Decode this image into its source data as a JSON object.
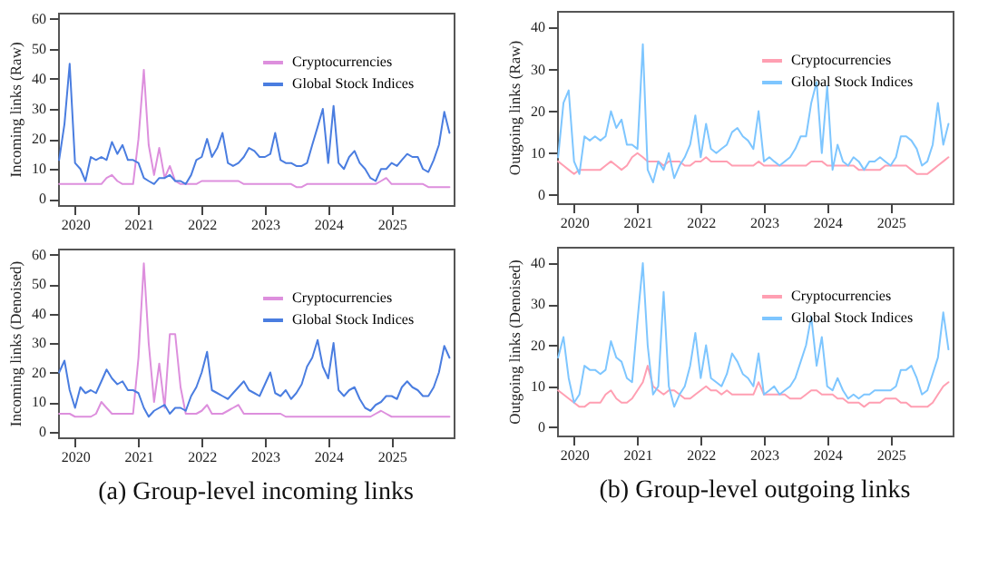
{
  "chart_data": [
    {
      "type": "line",
      "ylabel": "Incoming links (Raw)",
      "legend": "top right",
      "xlim": [
        "2019-09-25",
        "2025-12-25"
      ],
      "xticks": [
        {
          "value": "2020",
          "label": "2020"
        },
        {
          "value": "2021",
          "label": "2021"
        },
        {
          "value": "2022",
          "label": "2022"
        },
        {
          "value": "2023",
          "label": "2023"
        },
        {
          "value": "2024",
          "label": "2024"
        },
        {
          "value": "2025",
          "label": "2025"
        }
      ],
      "ylim": [
        -2,
        62
      ],
      "yticks": [
        0,
        10,
        20,
        30,
        40,
        50,
        60
      ],
      "x": [
        "2019-10",
        "2019-11",
        "2019-12",
        "2020-01",
        "2020-02",
        "2020-03",
        "2020-04",
        "2020-05",
        "2020-06",
        "2020-07",
        "2020-08",
        "2020-09",
        "2020-10",
        "2020-11",
        "2020-12",
        "2021-01",
        "2021-02",
        "2021-03",
        "2021-04",
        "2021-05",
        "2021-06",
        "2021-07",
        "2021-08",
        "2021-09",
        "2021-10",
        "2021-11",
        "2021-12",
        "2022-01",
        "2022-02",
        "2022-03",
        "2022-04",
        "2022-05",
        "2022-06",
        "2022-07",
        "2022-08",
        "2022-09",
        "2022-10",
        "2022-11",
        "2022-12",
        "2023-01",
        "2023-02",
        "2023-03",
        "2023-04",
        "2023-05",
        "2023-06",
        "2023-07",
        "2023-08",
        "2023-09",
        "2023-10",
        "2023-11",
        "2023-12",
        "2024-01",
        "2024-02",
        "2024-03",
        "2024-04",
        "2024-05",
        "2024-06",
        "2024-07",
        "2024-08",
        "2024-09",
        "2024-10",
        "2024-11",
        "2024-12",
        "2025-01",
        "2025-02",
        "2025-03",
        "2025-04",
        "2025-05",
        "2025-06",
        "2025-07",
        "2025-08",
        "2025-09",
        "2025-10",
        "2025-11",
        "2025-12"
      ],
      "series": [
        {
          "name": "Cryptocurrencies",
          "color": "#dd8fdd",
          "values": [
            5,
            5,
            5,
            5,
            5,
            5,
            5,
            5,
            5,
            7,
            8,
            6,
            5,
            5,
            5,
            20,
            43,
            18,
            8,
            17,
            7,
            11,
            6,
            5,
            5,
            5,
            5,
            6,
            6,
            6,
            6,
            6,
            6,
            6,
            6,
            5,
            5,
            5,
            5,
            5,
            5,
            5,
            5,
            5,
            5,
            4,
            4,
            5,
            5,
            5,
            5,
            5,
            5,
            5,
            5,
            5,
            5,
            5,
            5,
            5,
            5,
            6,
            7,
            5,
            5,
            5,
            5,
            5,
            5,
            5,
            4,
            4,
            4,
            4,
            4
          ]
        },
        {
          "name": "Global Stock Indices",
          "color": "#4a7de0",
          "values": [
            13,
            25,
            45,
            12,
            10,
            6,
            14,
            13,
            14,
            13,
            19,
            15,
            18,
            13,
            13,
            12,
            7,
            6,
            5,
            7,
            7,
            8,
            6,
            6,
            5,
            8,
            13,
            14,
            20,
            14,
            17,
            22,
            12,
            11,
            12,
            14,
            17,
            16,
            14,
            14,
            15,
            22,
            13,
            12,
            12,
            11,
            11,
            12,
            18,
            24,
            30,
            12,
            31,
            12,
            10,
            14,
            16,
            12,
            10,
            7,
            6,
            10,
            10,
            12,
            11,
            13,
            15,
            14,
            14,
            10,
            9,
            13,
            18,
            29,
            22
          ]
        }
      ]
    },
    {
      "type": "line",
      "ylabel": "Outgoing links (Raw)",
      "legend": "top right",
      "xlim": [
        "2019-09-25",
        "2025-12-25"
      ],
      "xticks": [
        {
          "value": "2020",
          "label": "2020"
        },
        {
          "value": "2021",
          "label": "2021"
        },
        {
          "value": "2022",
          "label": "2022"
        },
        {
          "value": "2023",
          "label": "2023"
        },
        {
          "value": "2024",
          "label": "2024"
        },
        {
          "value": "2025",
          "label": "2025"
        }
      ],
      "ylim": [
        -2,
        44
      ],
      "yticks": [
        0,
        10,
        20,
        30,
        40
      ],
      "x": [
        "2019-10",
        "2019-11",
        "2019-12",
        "2020-01",
        "2020-02",
        "2020-03",
        "2020-04",
        "2020-05",
        "2020-06",
        "2020-07",
        "2020-08",
        "2020-09",
        "2020-10",
        "2020-11",
        "2020-12",
        "2021-01",
        "2021-02",
        "2021-03",
        "2021-04",
        "2021-05",
        "2021-06",
        "2021-07",
        "2021-08",
        "2021-09",
        "2021-10",
        "2021-11",
        "2021-12",
        "2022-01",
        "2022-02",
        "2022-03",
        "2022-04",
        "2022-05",
        "2022-06",
        "2022-07",
        "2022-08",
        "2022-09",
        "2022-10",
        "2022-11",
        "2022-12",
        "2023-01",
        "2023-02",
        "2023-03",
        "2023-04",
        "2023-05",
        "2023-06",
        "2023-07",
        "2023-08",
        "2023-09",
        "2023-10",
        "2023-11",
        "2023-12",
        "2024-01",
        "2024-02",
        "2024-03",
        "2024-04",
        "2024-05",
        "2024-06",
        "2024-07",
        "2024-08",
        "2024-09",
        "2024-10",
        "2024-11",
        "2024-12",
        "2025-01",
        "2025-02",
        "2025-03",
        "2025-04",
        "2025-05",
        "2025-06",
        "2025-07",
        "2025-08",
        "2025-09",
        "2025-10",
        "2025-11",
        "2025-12"
      ],
      "series": [
        {
          "name": "Cryptocurrencies",
          "color": "#ff9fb2",
          "values": [
            8,
            7,
            6,
            5,
            6,
            6,
            6,
            6,
            6,
            7,
            8,
            7,
            6,
            7,
            9,
            10,
            9,
            8,
            8,
            8,
            7,
            8,
            8,
            8,
            7,
            7,
            8,
            8,
            9,
            8,
            8,
            8,
            8,
            7,
            7,
            7,
            7,
            7,
            8,
            7,
            7,
            7,
            7,
            7,
            7,
            7,
            7,
            7,
            8,
            8,
            8,
            7,
            7,
            7,
            7,
            7,
            7,
            6,
            6,
            6,
            6,
            6,
            7,
            7,
            7,
            7,
            7,
            6,
            5,
            5,
            5,
            6,
            7,
            8,
            9
          ]
        },
        {
          "name": "Global Stock Indices",
          "color": "#7ec6ff",
          "values": [
            9,
            22,
            25,
            8,
            5,
            14,
            13,
            14,
            13,
            14,
            20,
            16,
            18,
            12,
            12,
            11,
            36,
            6,
            3,
            8,
            6,
            10,
            4,
            7,
            9,
            12,
            19,
            9,
            17,
            11,
            10,
            11,
            12,
            15,
            16,
            14,
            13,
            11,
            20,
            8,
            9,
            8,
            7,
            8,
            9,
            11,
            14,
            14,
            22,
            27,
            10,
            26,
            6,
            12,
            8,
            7,
            9,
            8,
            6,
            8,
            8,
            9,
            8,
            7,
            9,
            14,
            14,
            13,
            11,
            7,
            8,
            12,
            22,
            12,
            17
          ]
        }
      ]
    },
    {
      "type": "line",
      "ylabel": "Incoming links (Denoised)",
      "legend": "top right",
      "annotations": [
        "(a) Group-level incoming links"
      ],
      "xlim": [
        "2019-09-25",
        "2025-12-25"
      ],
      "xticks": [
        {
          "value": "2020",
          "label": "2020"
        },
        {
          "value": "2021",
          "label": "2021"
        },
        {
          "value": "2022",
          "label": "2022"
        },
        {
          "value": "2023",
          "label": "2023"
        },
        {
          "value": "2024",
          "label": "2024"
        },
        {
          "value": "2025",
          "label": "2025"
        }
      ],
      "ylim": [
        -2,
        62
      ],
      "yticks": [
        0,
        10,
        20,
        30,
        40,
        50,
        60
      ],
      "x": [
        "2019-10",
        "2019-11",
        "2019-12",
        "2020-01",
        "2020-02",
        "2020-03",
        "2020-04",
        "2020-05",
        "2020-06",
        "2020-07",
        "2020-08",
        "2020-09",
        "2020-10",
        "2020-11",
        "2020-12",
        "2021-01",
        "2021-02",
        "2021-03",
        "2021-04",
        "2021-05",
        "2021-06",
        "2021-07",
        "2021-08",
        "2021-09",
        "2021-10",
        "2021-11",
        "2021-12",
        "2022-01",
        "2022-02",
        "2022-03",
        "2022-04",
        "2022-05",
        "2022-06",
        "2022-07",
        "2022-08",
        "2022-09",
        "2022-10",
        "2022-11",
        "2022-12",
        "2023-01",
        "2023-02",
        "2023-03",
        "2023-04",
        "2023-05",
        "2023-06",
        "2023-07",
        "2023-08",
        "2023-09",
        "2023-10",
        "2023-11",
        "2023-12",
        "2024-01",
        "2024-02",
        "2024-03",
        "2024-04",
        "2024-05",
        "2024-06",
        "2024-07",
        "2024-08",
        "2024-09",
        "2024-10",
        "2024-11",
        "2024-12",
        "2025-01",
        "2025-02",
        "2025-03",
        "2025-04",
        "2025-05",
        "2025-06",
        "2025-07",
        "2025-08",
        "2025-09",
        "2025-10",
        "2025-11",
        "2025-12"
      ],
      "series": [
        {
          "name": "Cryptocurrencies",
          "color": "#dd8fdd",
          "values": [
            6,
            6,
            6,
            5,
            5,
            5,
            5,
            6,
            10,
            8,
            6,
            6,
            6,
            6,
            6,
            25,
            57,
            30,
            10,
            23,
            8,
            33,
            33,
            15,
            6,
            6,
            6,
            7,
            9,
            6,
            6,
            6,
            7,
            8,
            9,
            6,
            6,
            6,
            6,
            6,
            6,
            6,
            6,
            5,
            5,
            5,
            5,
            5,
            5,
            5,
            5,
            5,
            5,
            5,
            5,
            5,
            5,
            5,
            5,
            5,
            6,
            7,
            6,
            5,
            5,
            5,
            5,
            5,
            5,
            5,
            5,
            5,
            5,
            5,
            5
          ]
        },
        {
          "name": "Global Stock Indices",
          "color": "#4a7de0",
          "values": [
            20,
            24,
            14,
            8,
            15,
            13,
            14,
            13,
            17,
            21,
            18,
            16,
            17,
            14,
            14,
            13,
            8,
            5,
            7,
            8,
            9,
            6,
            8,
            8,
            7,
            12,
            15,
            20,
            27,
            14,
            13,
            12,
            11,
            13,
            15,
            17,
            14,
            13,
            12,
            16,
            20,
            13,
            12,
            14,
            11,
            13,
            16,
            22,
            25,
            31,
            22,
            18,
            30,
            14,
            12,
            14,
            15,
            11,
            8,
            7,
            9,
            10,
            12,
            12,
            11,
            15,
            17,
            15,
            14,
            12,
            12,
            15,
            20,
            29,
            25
          ]
        }
      ]
    },
    {
      "type": "line",
      "ylabel": "Outgoing links (Denoised)",
      "legend": "top right",
      "annotations": [
        "(b) Group-level outgoing links"
      ],
      "xlim": [
        "2019-09-25",
        "2025-12-25"
      ],
      "xticks": [
        {
          "value": "2020",
          "label": "2020"
        },
        {
          "value": "2021",
          "label": "2021"
        },
        {
          "value": "2022",
          "label": "2022"
        },
        {
          "value": "2023",
          "label": "2023"
        },
        {
          "value": "2024",
          "label": "2024"
        },
        {
          "value": "2025",
          "label": "2025"
        }
      ],
      "ylim": [
        -2,
        44
      ],
      "yticks": [
        0,
        10,
        20,
        30,
        40
      ],
      "x": [
        "2019-10",
        "2019-11",
        "2019-12",
        "2020-01",
        "2020-02",
        "2020-03",
        "2020-04",
        "2020-05",
        "2020-06",
        "2020-07",
        "2020-08",
        "2020-09",
        "2020-10",
        "2020-11",
        "2020-12",
        "2021-01",
        "2021-02",
        "2021-03",
        "2021-04",
        "2021-05",
        "2021-06",
        "2021-07",
        "2021-08",
        "2021-09",
        "2021-10",
        "2021-11",
        "2021-12",
        "2022-01",
        "2022-02",
        "2022-03",
        "2022-04",
        "2022-05",
        "2022-06",
        "2022-07",
        "2022-08",
        "2022-09",
        "2022-10",
        "2022-11",
        "2022-12",
        "2023-01",
        "2023-02",
        "2023-03",
        "2023-04",
        "2023-05",
        "2023-06",
        "2023-07",
        "2023-08",
        "2023-09",
        "2023-10",
        "2023-11",
        "2023-12",
        "2024-01",
        "2024-02",
        "2024-03",
        "2024-04",
        "2024-05",
        "2024-06",
        "2024-07",
        "2024-08",
        "2024-09",
        "2024-10",
        "2024-11",
        "2024-12",
        "2025-01",
        "2025-02",
        "2025-03",
        "2025-04",
        "2025-05",
        "2025-06",
        "2025-07",
        "2025-08",
        "2025-09",
        "2025-10",
        "2025-11",
        "2025-12"
      ],
      "series": [
        {
          "name": "Cryptocurrencies",
          "color": "#ff9fb2",
          "values": [
            9,
            8,
            7,
            6,
            5,
            5,
            6,
            6,
            6,
            8,
            9,
            7,
            6,
            6,
            7,
            9,
            11,
            15,
            10,
            9,
            8,
            9,
            9,
            8,
            7,
            7,
            8,
            9,
            10,
            9,
            9,
            8,
            9,
            8,
            8,
            8,
            8,
            8,
            11,
            8,
            8,
            8,
            8,
            8,
            7,
            7,
            7,
            8,
            9,
            9,
            8,
            8,
            8,
            7,
            7,
            6,
            6,
            6,
            5,
            6,
            6,
            6,
            7,
            7,
            7,
            6,
            6,
            5,
            5,
            5,
            5,
            6,
            8,
            10,
            11
          ]
        },
        {
          "name": "Global Stock Indices",
          "color": "#7ec6ff",
          "values": [
            17,
            22,
            12,
            6,
            8,
            15,
            14,
            14,
            13,
            14,
            21,
            17,
            16,
            12,
            11,
            26,
            40,
            20,
            8,
            10,
            33,
            10,
            5,
            8,
            10,
            15,
            23,
            12,
            20,
            12,
            11,
            10,
            13,
            18,
            16,
            13,
            12,
            10,
            18,
            8,
            9,
            10,
            8,
            9,
            10,
            12,
            16,
            20,
            27,
            15,
            22,
            10,
            9,
            12,
            9,
            7,
            8,
            7,
            8,
            8,
            9,
            9,
            9,
            9,
            10,
            14,
            14,
            15,
            12,
            8,
            9,
            13,
            17,
            28,
            19
          ]
        }
      ]
    }
  ]
}
